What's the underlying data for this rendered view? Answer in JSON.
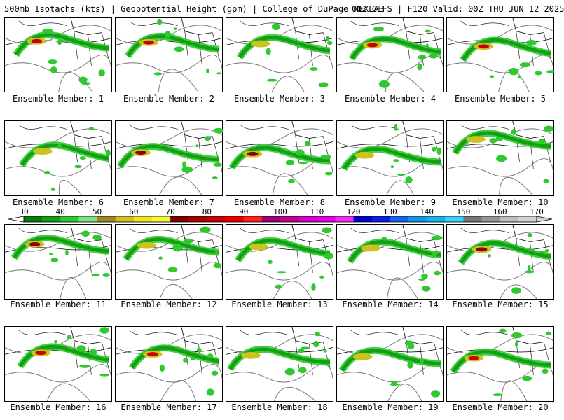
{
  "header": {
    "left": "500mb Isotachs (kts) | Geopotential Height (gpm) | College of DuPage NEXLAB",
    "right": "00Z GEFS | F120 Valid: 00Z THU JUN 12 2025"
  },
  "label_prefix": "Ensemble Member: ",
  "members": [
    {
      "label": "Ensemble Member: 1",
      "max_speed": "red"
    },
    {
      "label": "Ensemble Member: 2",
      "max_speed": "red"
    },
    {
      "label": "Ensemble Member: 3",
      "max_speed": "orange"
    },
    {
      "label": "Ensemble Member: 4",
      "max_speed": "red"
    },
    {
      "label": "Ensemble Member: 5",
      "max_speed": "red"
    },
    {
      "label": "Ensemble Member: 6",
      "max_speed": "orange"
    },
    {
      "label": "Ensemble Member: 7",
      "max_speed": "darkred"
    },
    {
      "label": "Ensemble Member: 8",
      "max_speed": "darkred"
    },
    {
      "label": "Ensemble Member: 9",
      "max_speed": "orange"
    },
    {
      "label": "Ensemble Member: 10",
      "max_speed": "orange"
    },
    {
      "label": "Ensemble Member: 11",
      "max_speed": "darkred"
    },
    {
      "label": "Ensemble Member: 12",
      "max_speed": "orange"
    },
    {
      "label": "Ensemble Member: 13",
      "max_speed": "orange"
    },
    {
      "label": "Ensemble Member: 14",
      "max_speed": "orange"
    },
    {
      "label": "Ensemble Member: 15",
      "max_speed": "darkred"
    },
    {
      "label": "Ensemble Member: 16",
      "max_speed": "red"
    },
    {
      "label": "Ensemble Member: 17",
      "max_speed": "red"
    },
    {
      "label": "Ensemble Member: 18",
      "max_speed": "orange"
    },
    {
      "label": "Ensemble Member: 19",
      "max_speed": "orange"
    },
    {
      "label": "Ensemble Member: 20",
      "max_speed": "red"
    }
  ],
  "colorbar": {
    "tick_labels": [
      "30",
      "40",
      "50",
      "60",
      "70",
      "80",
      "90",
      "100",
      "110",
      "120",
      "130",
      "140",
      "150",
      "160",
      "170"
    ],
    "colors": [
      "#0b7a0b",
      "#12a012",
      "#2fc92f",
      "#7fe07f",
      "#9c8a1f",
      "#cfc21f",
      "#f0e21f",
      "#f5f53a",
      "#7a0000",
      "#a80000",
      "#c80000",
      "#e60000",
      "#ff2020",
      "#a0007a",
      "#c0008f",
      "#d400c8",
      "#e400e4",
      "#f02ff0",
      "#0000c8",
      "#0a1ee6",
      "#1464f0",
      "#1496e6",
      "#14b4f0",
      "#3cd2ff",
      "#787878",
      "#969696",
      "#bebebe",
      "#d2d2d2"
    ]
  }
}
